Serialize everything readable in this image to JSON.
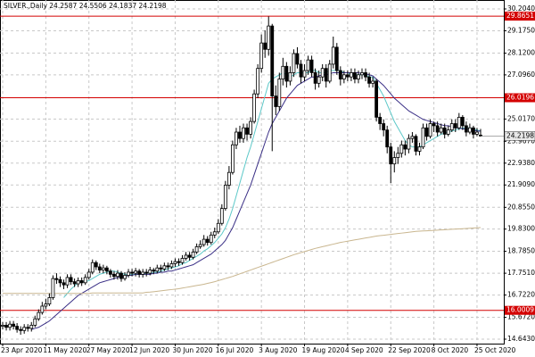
{
  "chart_data": {
    "type": "candlestick",
    "title": "SILVER.,Daily",
    "categories": [
      "23 Apr 2020",
      null,
      null,
      null,
      null,
      null,
      null,
      null,
      null,
      null,
      null,
      null,
      "11 May 2020",
      null,
      null,
      null,
      null,
      null,
      null,
      null,
      null,
      null,
      null,
      null,
      "27 May 2020",
      null,
      null,
      null,
      null,
      null,
      null,
      null,
      null,
      null,
      null,
      null,
      "12 Jun 2020",
      null,
      null,
      null,
      null,
      null,
      null,
      null,
      null,
      null,
      null,
      null,
      "30 Jun 2020",
      null,
      null,
      null,
      null,
      null,
      null,
      null,
      null,
      null,
      null,
      null,
      "16 Jul 2020",
      null,
      null,
      null,
      null,
      null,
      null,
      null,
      null,
      null,
      null,
      null,
      "3 Aug 2020",
      null,
      null,
      null,
      null,
      null,
      null,
      null,
      null,
      null,
      null,
      null,
      "19 Aug 2020",
      null,
      null,
      null,
      null,
      null,
      null,
      null,
      null,
      null,
      null,
      null,
      "4 Sep 2020",
      null,
      null,
      null,
      null,
      null,
      null,
      null,
      null,
      null,
      null,
      null,
      "22 Sep 2020",
      null,
      null,
      null,
      null,
      null,
      null,
      null,
      null,
      null,
      null,
      null,
      "8 Oct 2020",
      null,
      null,
      null,
      null,
      null,
      null,
      null,
      null,
      null,
      null,
      null,
      "25 Oct 2020",
      null
    ],
    "open": [
      15.25,
      15.3,
      15.2,
      15.35,
      15.25,
      15.1,
      15.05,
      15.2,
      15.15,
      15.3,
      15.6,
      15.9,
      16.2,
      16.3,
      16.6,
      17.5,
      17.45,
      17.3,
      17.2,
      17.55,
      17.35,
      17.25,
      17.4,
      17.3,
      17.55,
      17.8,
      18.25,
      18.05,
      17.9,
      18.0,
      17.85,
      17.7,
      17.6,
      17.75,
      17.5,
      17.65,
      17.8,
      17.75,
      17.85,
      17.7,
      17.8,
      17.75,
      17.9,
      17.85,
      18.0,
      17.95,
      18.1,
      18.05,
      18.2,
      18.3,
      18.25,
      18.45,
      18.6,
      18.5,
      18.75,
      19.0,
      19.1,
      19.35,
      19.2,
      19.55,
      19.7,
      20.1,
      20.8,
      21.9,
      22.5,
      23.8,
      24.4,
      24.1,
      24.6,
      24.3,
      24.9,
      26.2,
      27.4,
      28.6,
      28.3,
      29.4,
      26.1,
      25.6,
      26.9,
      27.5,
      26.8,
      27.2,
      28.1,
      27.6,
      27.0,
      27.3,
      27.8,
      27.2,
      26.7,
      27.0,
      27.4,
      26.8,
      27.6,
      28.4,
      27.3,
      26.9,
      27.1,
      27.0,
      27.2,
      26.9,
      27.1,
      27.2,
      27.0,
      26.7,
      26.8,
      25.1,
      24.8,
      24.5,
      23.7,
      22.9,
      23.2,
      23.4,
      23.8,
      23.6,
      24.1,
      24.2,
      23.5,
      23.7,
      24.6,
      24.2,
      24.8,
      24.7,
      24.4,
      24.6,
      24.3,
      24.5,
      24.8,
      24.6,
      25.1,
      24.7,
      24.4,
      24.6,
      24.3,
      24.2587
    ],
    "high": [
      15.45,
      15.45,
      15.5,
      15.5,
      15.4,
      15.25,
      15.35,
      15.35,
      15.45,
      15.75,
      16.05,
      16.4,
      16.55,
      16.8,
      17.65,
      17.75,
      17.6,
      17.45,
      17.7,
      17.7,
      17.5,
      17.55,
      17.55,
      17.7,
      17.95,
      18.4,
      18.35,
      18.2,
      18.15,
      18.1,
      17.95,
      17.85,
      17.9,
      17.85,
      17.8,
      17.95,
      17.95,
      18.0,
      17.95,
      17.95,
      17.95,
      18.05,
      18.0,
      18.15,
      18.15,
      18.25,
      18.25,
      18.35,
      18.45,
      18.45,
      18.6,
      18.75,
      18.75,
      18.9,
      19.15,
      19.3,
      19.55,
      19.5,
      19.7,
      19.9,
      20.3,
      21.0,
      22.1,
      22.8,
      24.0,
      24.6,
      24.7,
      24.8,
      24.8,
      25.1,
      26.4,
      27.6,
      29.0,
      29.2,
      29.85,
      29.5,
      26.6,
      27.2,
      27.9,
      27.7,
      27.5,
      28.3,
      28.4,
      27.8,
      27.6,
      28.0,
      28.0,
      27.4,
      27.3,
      27.6,
      27.6,
      27.8,
      28.9,
      28.6,
      27.5,
      27.3,
      27.3,
      27.4,
      27.4,
      27.3,
      27.4,
      27.4,
      27.2,
      27.0,
      26.9,
      25.3,
      25.0,
      24.7,
      23.9,
      23.5,
      23.7,
      24.0,
      24.0,
      24.3,
      24.4,
      24.3,
      23.9,
      24.8,
      24.8,
      25.0,
      24.9,
      24.9,
      24.8,
      24.8,
      24.7,
      25.0,
      25.0,
      25.3,
      25.2,
      24.9,
      24.8,
      24.7,
      24.6,
      24.5506
    ],
    "low": [
      15.1,
      15.05,
      15.05,
      15.1,
      14.95,
      14.85,
      14.9,
      15.0,
      15.0,
      15.2,
      15.5,
      15.8,
      16.05,
      16.2,
      16.5,
      17.25,
      17.1,
      17.0,
      17.05,
      17.2,
      17.1,
      17.1,
      17.15,
      17.2,
      17.45,
      17.7,
      17.9,
      17.75,
      17.75,
      17.7,
      17.55,
      17.45,
      17.45,
      17.35,
      17.4,
      17.55,
      17.6,
      17.6,
      17.55,
      17.55,
      17.6,
      17.65,
      17.7,
      17.75,
      17.8,
      17.85,
      17.9,
      17.95,
      18.05,
      18.1,
      18.15,
      18.35,
      18.35,
      18.4,
      18.65,
      18.9,
      19.0,
      19.05,
      19.1,
      19.4,
      19.6,
      20.0,
      20.7,
      21.7,
      22.4,
      23.6,
      23.9,
      23.9,
      24.0,
      24.1,
      24.8,
      26.0,
      27.2,
      27.9,
      28.0,
      23.5,
      25.2,
      25.4,
      26.6,
      26.5,
      26.6,
      27.0,
      27.4,
      26.7,
      26.8,
      27.1,
      27.0,
      26.4,
      26.5,
      26.8,
      26.5,
      26.7,
      27.4,
      27.1,
      26.6,
      26.7,
      26.8,
      26.8,
      26.7,
      26.7,
      26.9,
      26.8,
      26.5,
      26.5,
      24.9,
      24.5,
      24.2,
      23.4,
      22.0,
      22.5,
      22.9,
      23.2,
      23.3,
      23.4,
      23.9,
      23.3,
      23.3,
      23.6,
      24.0,
      24.1,
      24.4,
      24.2,
      24.3,
      24.1,
      24.2,
      24.4,
      24.4,
      24.5,
      24.5,
      24.2,
      24.3,
      24.1,
      24.2,
      24.1837
    ],
    "close": [
      15.3,
      15.2,
      15.35,
      15.25,
      15.1,
      15.05,
      15.2,
      15.15,
      15.3,
      15.6,
      15.9,
      16.2,
      16.3,
      16.6,
      17.5,
      17.45,
      17.3,
      17.2,
      17.55,
      17.35,
      17.25,
      17.4,
      17.3,
      17.55,
      17.8,
      18.25,
      18.05,
      17.9,
      18.0,
      17.85,
      17.7,
      17.6,
      17.75,
      17.5,
      17.65,
      17.8,
      17.75,
      17.85,
      17.7,
      17.8,
      17.75,
      17.9,
      17.85,
      18.0,
      17.95,
      18.1,
      18.05,
      18.2,
      18.3,
      18.25,
      18.45,
      18.6,
      18.5,
      18.75,
      19.0,
      19.1,
      19.35,
      19.2,
      19.55,
      19.7,
      20.1,
      20.8,
      21.9,
      22.5,
      23.8,
      24.4,
      24.1,
      24.6,
      24.3,
      24.9,
      26.2,
      27.4,
      28.6,
      28.3,
      29.4,
      26.1,
      25.6,
      26.9,
      27.5,
      26.8,
      27.2,
      28.1,
      27.6,
      27.0,
      27.3,
      27.8,
      27.2,
      26.7,
      27.0,
      27.4,
      26.8,
      27.6,
      28.4,
      27.3,
      26.9,
      27.1,
      27.0,
      27.2,
      26.9,
      27.1,
      27.2,
      27.0,
      26.7,
      26.8,
      25.1,
      24.8,
      24.5,
      23.7,
      22.9,
      23.2,
      23.4,
      23.8,
      23.6,
      24.1,
      24.2,
      23.5,
      23.7,
      24.6,
      24.2,
      24.8,
      24.7,
      24.4,
      24.6,
      24.3,
      24.5,
      24.8,
      24.6,
      25.1,
      24.7,
      24.4,
      24.6,
      24.3,
      24.4,
      24.2198
    ],
    "up_color": "#ffffff",
    "down_color": "#000000",
    "series": [
      {
        "type": "line",
        "color": "#5cc8c8",
        "values": [
          null,
          null,
          null,
          null,
          null,
          null,
          null,
          null,
          null,
          null,
          null,
          null,
          null,
          null,
          null,
          null,
          null,
          16.6,
          16.8,
          17.0,
          17.15,
          17.3,
          17.35,
          17.35,
          17.4,
          17.5,
          17.6,
          17.7,
          17.75,
          17.8,
          17.85,
          17.85,
          17.8,
          17.75,
          17.7,
          17.7,
          17.7,
          17.7,
          17.7,
          17.7,
          17.75,
          17.75,
          17.8,
          17.8,
          17.85,
          17.9,
          17.95,
          18.0,
          18.05,
          18.1,
          18.2,
          18.25,
          18.35,
          18.45,
          18.55,
          18.65,
          18.8,
          18.9,
          19.05,
          19.2,
          19.4,
          19.6,
          19.9,
          20.3,
          20.8,
          21.4,
          22.0,
          22.6,
          23.2,
          23.7,
          24.3,
          24.9,
          25.5,
          26.1,
          26.7,
          26.9,
          27.0,
          27.1,
          27.2,
          27.1,
          27.0,
          27.1,
          27.2,
          27.2,
          27.2,
          27.2,
          27.3,
          27.3,
          27.2,
          27.2,
          27.2,
          27.3,
          27.3,
          27.3,
          27.3,
          27.2,
          27.2,
          27.1,
          27.1,
          27.1,
          27.1,
          27.1,
          27.0,
          27.0,
          26.7,
          26.4,
          26.1,
          25.7,
          25.3,
          24.9,
          24.6,
          24.3,
          24.0,
          23.8,
          23.7,
          23.7,
          23.7,
          23.8,
          23.9,
          24.0,
          24.1,
          24.2,
          24.3,
          24.35,
          24.4,
          24.45,
          24.5,
          24.55,
          24.6,
          24.6,
          24.6,
          24.55,
          24.5,
          24.45
        ]
      },
      {
        "type": "line",
        "color": "#3a2f86",
        "values": [
          null,
          null,
          null,
          null,
          null,
          null,
          null,
          null,
          15.1,
          15.15,
          15.2,
          15.3,
          15.4,
          15.5,
          15.65,
          15.8,
          15.95,
          16.1,
          16.25,
          16.4,
          16.55,
          16.7,
          16.8,
          16.9,
          17.0,
          17.1,
          17.2,
          17.3,
          17.35,
          17.4,
          17.45,
          17.5,
          17.55,
          17.6,
          17.6,
          17.65,
          17.65,
          17.7,
          17.7,
          17.7,
          17.7,
          17.7,
          17.75,
          17.75,
          17.8,
          17.8,
          17.85,
          17.85,
          17.9,
          17.95,
          18.0,
          18.05,
          18.1,
          18.15,
          18.25,
          18.35,
          18.45,
          18.55,
          18.65,
          18.8,
          18.95,
          19.1,
          19.3,
          19.6,
          19.9,
          20.3,
          20.7,
          21.1,
          21.5,
          21.9,
          22.4,
          22.9,
          23.4,
          23.9,
          24.4,
          24.8,
          25.1,
          25.4,
          25.7,
          26.0,
          26.2,
          26.4,
          26.6,
          26.7,
          26.8,
          26.9,
          27.0,
          27.0,
          27.05,
          27.1,
          27.1,
          27.15,
          27.2,
          27.2,
          27.2,
          27.2,
          27.2,
          27.2,
          27.2,
          27.2,
          27.15,
          27.15,
          27.1,
          27.05,
          26.9,
          26.75,
          26.6,
          26.4,
          26.2,
          26.0,
          25.85,
          25.7,
          25.55,
          25.4,
          25.3,
          25.2,
          25.1,
          25.0,
          24.95,
          24.9,
          24.85,
          24.8,
          24.75,
          24.7,
          24.7,
          24.65,
          24.6,
          24.6,
          24.55,
          24.55,
          24.5,
          24.5,
          24.45,
          24.45
        ]
      },
      {
        "type": "line",
        "color": "#c9b68f",
        "values": [
          16.8,
          16.8,
          16.8,
          16.8,
          16.8,
          16.8,
          16.8,
          16.8,
          16.8,
          16.8,
          16.8,
          16.8,
          16.8,
          16.8,
          16.8,
          16.8,
          16.8,
          16.8,
          16.8,
          16.8,
          16.8,
          16.8,
          16.8,
          16.8,
          16.8,
          16.82,
          16.82,
          16.82,
          16.82,
          16.82,
          16.82,
          16.82,
          16.82,
          16.82,
          16.82,
          16.82,
          16.82,
          16.82,
          16.82,
          16.82,
          16.85,
          16.86,
          16.88,
          16.9,
          16.92,
          16.94,
          16.96,
          16.98,
          17.0,
          17.02,
          17.05,
          17.08,
          17.11,
          17.14,
          17.17,
          17.2,
          17.23,
          17.27,
          17.31,
          17.35,
          17.4,
          17.45,
          17.5,
          17.55,
          17.6,
          17.66,
          17.72,
          17.78,
          17.84,
          17.9,
          17.96,
          18.02,
          18.08,
          18.14,
          18.2,
          18.26,
          18.32,
          18.38,
          18.44,
          18.5,
          18.56,
          18.62,
          18.67,
          18.72,
          18.77,
          18.82,
          18.87,
          18.92,
          18.96,
          19.0,
          19.04,
          19.08,
          19.12,
          19.16,
          19.2,
          19.23,
          19.26,
          19.29,
          19.32,
          19.35,
          19.38,
          19.41,
          19.44,
          19.47,
          19.5,
          19.52,
          19.54,
          19.56,
          19.58,
          19.6,
          19.62,
          19.64,
          19.66,
          19.68,
          19.7,
          19.72,
          19.73,
          19.74,
          19.75,
          19.76,
          19.77,
          19.78,
          19.79,
          19.8,
          19.81,
          19.82,
          19.83,
          19.84,
          19.85,
          19.86,
          19.87,
          19.88,
          19.89,
          19.9
        ]
      }
    ],
    "hlines": [
      {
        "value": 29.8651,
        "color": "#d40000"
      },
      {
        "value": 26.0196,
        "color": "#d40000"
      },
      {
        "value": 16.0009,
        "color": "#d40000"
      }
    ],
    "ylim": [
      14.433,
      30.625
    ],
    "yticks": [
      {
        "value": 30.204,
        "label": "30.2040"
      },
      {
        "value": 29.175,
        "label": "29.1750"
      },
      {
        "value": 28.12,
        "label": "28.1200"
      },
      {
        "value": 27.096,
        "label": "27.0960"
      },
      {
        "value": 25.017,
        "label": "25.0170"
      },
      {
        "value": 23.967,
        "label": "23.9670"
      },
      {
        "value": 22.938,
        "label": "22.9380"
      },
      {
        "value": 21.909,
        "label": "21.9090"
      },
      {
        "value": 20.855,
        "label": "20.8550"
      },
      {
        "value": 19.83,
        "label": "19.8300"
      },
      {
        "value": 18.785,
        "label": "18.7850"
      },
      {
        "value": 17.751,
        "label": "17.7510"
      },
      {
        "value": 16.722,
        "label": "16.7220"
      },
      {
        "value": 15.672,
        "label": "15.6720"
      },
      {
        "value": 14.643,
        "label": "14.6430"
      }
    ],
    "grid": true
  }
}
